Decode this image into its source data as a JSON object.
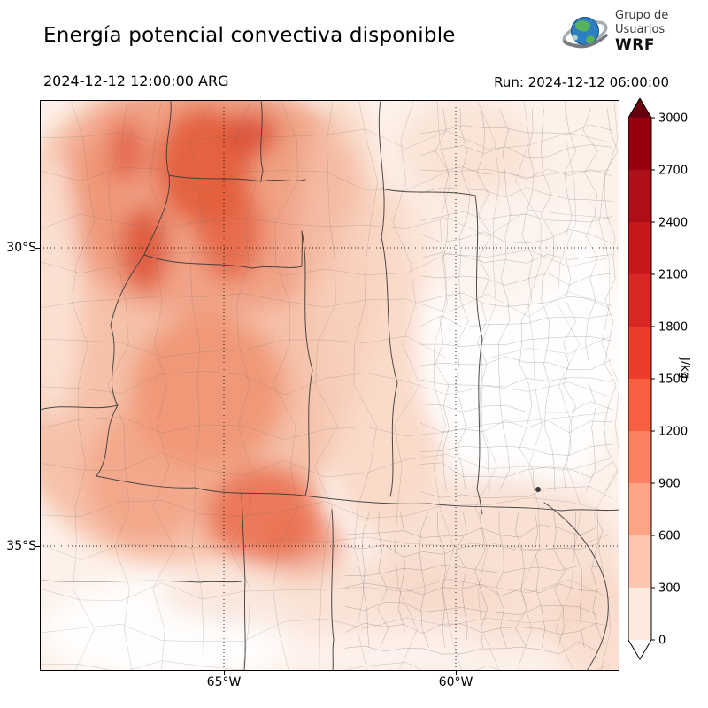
{
  "header": {
    "title": "Energía potencial convectiva disponible",
    "valid_time": "2024-12-12 12:00:00 ARG",
    "run_time": "Run: 2024-12-12 06:00:00"
  },
  "logo": {
    "line1": "Grupo de",
    "line2": "Usuarios",
    "line3": "WRF"
  },
  "map": {
    "lat_ticks": [
      "30°S",
      "35°S"
    ],
    "lon_ticks": [
      "65°W",
      "60°W"
    ]
  },
  "colorbar": {
    "unit": "J/kg",
    "ticks": [
      "3000",
      "2700",
      "2400",
      "2100",
      "1800",
      "1500",
      "1200",
      "900",
      "600",
      "300",
      "0"
    ],
    "colors_top_to_bottom": [
      "#99000d",
      "#ad1016",
      "#c5171c",
      "#d92723",
      "#ec3c2c",
      "#f85f41",
      "#fc8161",
      "#fca486",
      "#fcc7ae",
      "#fdeade"
    ],
    "over_color": "#67000d",
    "under_color": "#ffffff"
  }
}
